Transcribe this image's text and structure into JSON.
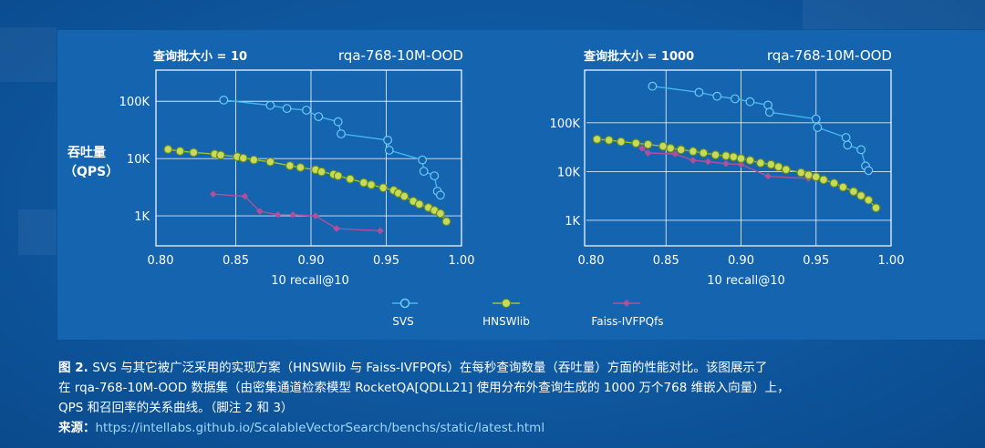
{
  "chart_data": [
    {
      "type": "line",
      "title": "rqa-768-10M-OOD",
      "subtitle": "查询批大小 = 10",
      "xlabel": "10 recall@10",
      "ylabel": "吞吐量",
      "ylabel_unit": "（QPS）",
      "y_scale": "log",
      "xlim": [
        0.8,
        1.0
      ],
      "ylim": [
        300,
        350000
      ],
      "x_ticks": [
        "0.80",
        "0.85",
        "0.90",
        "0.95",
        "1.00"
      ],
      "y_ticks": [
        {
          "value": 1000,
          "label": "1K"
        },
        {
          "value": 10000,
          "label": "10K"
        },
        {
          "value": 100000,
          "label": "100K"
        }
      ],
      "series": [
        {
          "name": "SVS",
          "x": [
            0.842,
            0.873,
            0.884,
            0.897,
            0.905,
            0.918,
            0.92,
            0.951,
            0.952,
            0.974,
            0.975,
            0.982,
            0.984,
            0.986
          ],
          "y": [
            105000,
            85000,
            75000,
            70000,
            54000,
            44000,
            27000,
            21000,
            14000,
            9500,
            6000,
            5000,
            2700,
            2300
          ]
        },
        {
          "name": "HNSWlib",
          "x": [
            0.805,
            0.813,
            0.822,
            0.836,
            0.84,
            0.851,
            0.855,
            0.862,
            0.873,
            0.886,
            0.893,
            0.903,
            0.907,
            0.915,
            0.918,
            0.926,
            0.935,
            0.94,
            0.948,
            0.955,
            0.958,
            0.962,
            0.968,
            0.972,
            0.978,
            0.982,
            0.986,
            0.99
          ],
          "y": [
            14500,
            13500,
            12800,
            12000,
            11500,
            10800,
            10200,
            9500,
            8800,
            7500,
            7000,
            6400,
            5900,
            5300,
            5000,
            4400,
            3800,
            3500,
            3100,
            2800,
            2500,
            2200,
            1800,
            1600,
            1400,
            1250,
            1100,
            800
          ]
        },
        {
          "name": "Faiss-IVFPQfs",
          "x": [
            0.835,
            0.856,
            0.866,
            0.878,
            0.888,
            0.903,
            0.917,
            0.946
          ],
          "y": [
            2400,
            2200,
            1200,
            1050,
            1050,
            1000,
            600,
            550
          ]
        }
      ]
    },
    {
      "type": "line",
      "title": "rqa-768-10M-OOD",
      "subtitle": "查询批大小 = 1000",
      "xlabel": "10 recall@10",
      "y_scale": "log",
      "xlim": [
        0.8,
        1.0
      ],
      "ylim": [
        300,
        1200000
      ],
      "x_ticks": [
        "0.80",
        "0.85",
        "0.90",
        "0.95",
        "1.00"
      ],
      "y_ticks": [
        {
          "value": 1000,
          "label": "1K"
        },
        {
          "value": 10000,
          "label": "10K"
        },
        {
          "value": 100000,
          "label": "100K"
        }
      ],
      "series": [
        {
          "name": "SVS",
          "x": [
            0.841,
            0.872,
            0.884,
            0.896,
            0.906,
            0.918,
            0.919,
            0.95,
            0.951,
            0.97,
            0.971,
            0.98,
            0.983,
            0.985
          ],
          "y": [
            560000,
            420000,
            350000,
            310000,
            270000,
            230000,
            165000,
            120000,
            80000,
            50000,
            35000,
            28000,
            13000,
            10500
          ]
        },
        {
          "name": "HNSWlib",
          "x": [
            0.804,
            0.812,
            0.82,
            0.83,
            0.838,
            0.848,
            0.853,
            0.86,
            0.868,
            0.875,
            0.883,
            0.89,
            0.895,
            0.9,
            0.906,
            0.913,
            0.92,
            0.925,
            0.93,
            0.94,
            0.945,
            0.95,
            0.955,
            0.962,
            0.968,
            0.975,
            0.98,
            0.985,
            0.99
          ],
          "y": [
            46000,
            44000,
            41000,
            38000,
            36000,
            33000,
            30000,
            28000,
            26000,
            24000,
            22000,
            21000,
            20000,
            18500,
            17000,
            15000,
            14000,
            12500,
            11000,
            9500,
            8500,
            7800,
            6800,
            5800,
            4800,
            3900,
            3200,
            2600,
            1800
          ]
        },
        {
          "name": "Faiss-IVFPQfs",
          "x": [
            0.834,
            0.838,
            0.856,
            0.868,
            0.878,
            0.89,
            0.9,
            0.918,
            0.945
          ],
          "y": [
            30000,
            24000,
            23000,
            17000,
            16000,
            14500,
            14000,
            8000,
            7200
          ]
        }
      ]
    }
  ],
  "legend": [
    {
      "label": "SVS"
    },
    {
      "label": "HNSWlib"
    },
    {
      "label": "Faiss-IVFPQfs"
    }
  ],
  "caption": {
    "figure": "图 2. ",
    "line1": "SVS 与其它被广泛采用的实现方案（HNSWlib 与 Faiss-IVFPQfs）在每秒查询数量（吞吐量）方面的性能对比。该图展示了",
    "line2": "在 rqa-768-10M-OOD 数据集（由密集通道检索模型 RocketQA[QDLL21] 使用分布外查询生成的 1000 万个768 维嵌入向量）上，",
    "line3": "QPS 和召回率的关系曲线。（脚注 2 和 3）",
    "source_label": "来源：",
    "source_url": "https://intellabs.github.io/ScalableVectorSearch/benchs/static/latest.html"
  }
}
